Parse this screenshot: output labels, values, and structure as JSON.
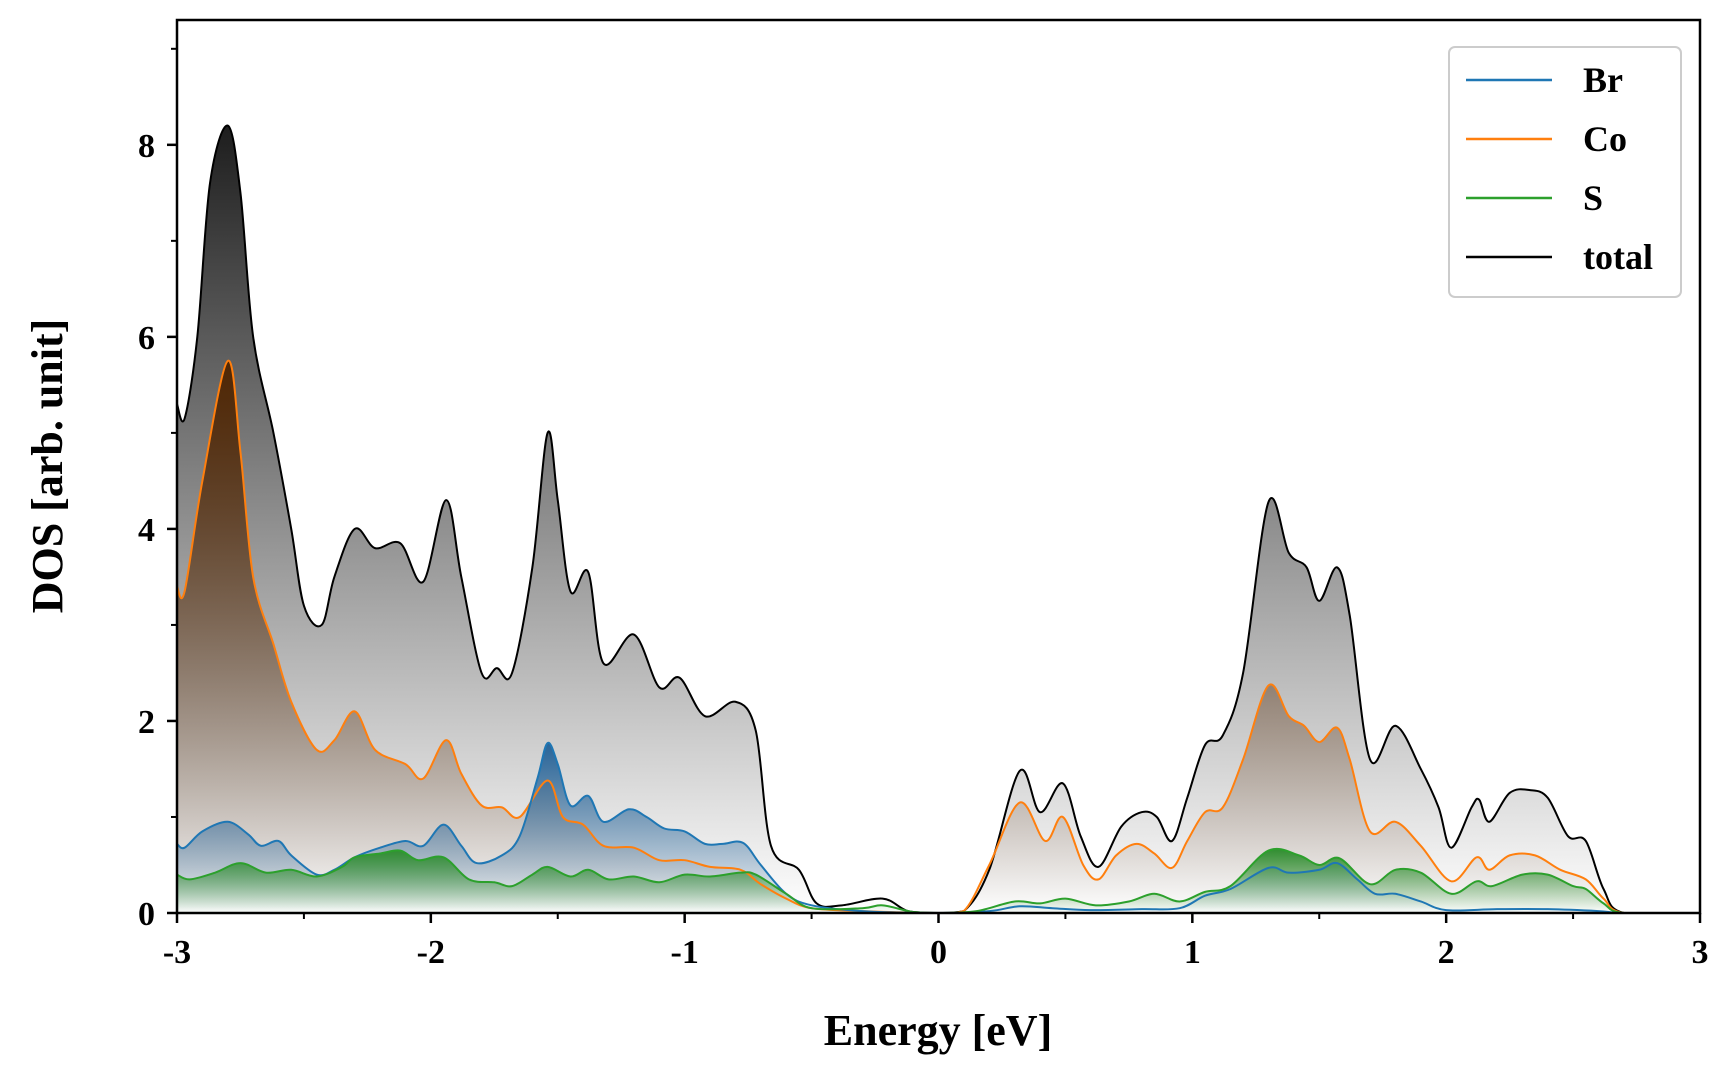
{
  "chart_data": {
    "type": "area",
    "title": "",
    "xlabel": "Energy [eV]",
    "ylabel": "DOS [arb. unit]",
    "xlim": [
      -3,
      3
    ],
    "ylim": [
      0,
      9.3
    ],
    "xticks": [
      -3,
      -2,
      -1,
      0,
      1,
      2,
      3
    ],
    "xtick_labels": [
      "-3",
      "-2",
      "-1",
      "0",
      "1",
      "2",
      "3"
    ],
    "yticks": [
      0,
      2,
      4,
      6,
      8
    ],
    "ytick_labels": [
      "0",
      "2",
      "4",
      "6",
      "8"
    ],
    "grid": false,
    "legend_position": "top-right",
    "series": [
      {
        "name": "total",
        "color": "#000000",
        "fill": "#111111",
        "points": [
          [
            -3,
            5.3
          ],
          [
            -2.97,
            5.15
          ],
          [
            -2.92,
            6.0
          ],
          [
            -2.87,
            7.6
          ],
          [
            -2.8,
            8.2
          ],
          [
            -2.75,
            7.5
          ],
          [
            -2.7,
            6.0
          ],
          [
            -2.62,
            5.0
          ],
          [
            -2.55,
            4.0
          ],
          [
            -2.5,
            3.2
          ],
          [
            -2.43,
            3.0
          ],
          [
            -2.38,
            3.5
          ],
          [
            -2.3,
            4.0
          ],
          [
            -2.22,
            3.8
          ],
          [
            -2.12,
            3.85
          ],
          [
            -2.03,
            3.45
          ],
          [
            -1.94,
            4.3
          ],
          [
            -1.88,
            3.5
          ],
          [
            -1.8,
            2.5
          ],
          [
            -1.74,
            2.55
          ],
          [
            -1.68,
            2.5
          ],
          [
            -1.6,
            3.6
          ],
          [
            -1.54,
            5.0
          ],
          [
            -1.5,
            4.3
          ],
          [
            -1.45,
            3.35
          ],
          [
            -1.38,
            3.55
          ],
          [
            -1.32,
            2.6
          ],
          [
            -1.2,
            2.9
          ],
          [
            -1.1,
            2.35
          ],
          [
            -1.02,
            2.45
          ],
          [
            -0.92,
            2.05
          ],
          [
            -0.8,
            2.2
          ],
          [
            -0.72,
            1.9
          ],
          [
            -0.66,
            0.7
          ],
          [
            -0.55,
            0.45
          ],
          [
            -0.48,
            0.1
          ],
          [
            -0.38,
            0.08
          ],
          [
            -0.22,
            0.15
          ],
          [
            -0.12,
            0.02
          ],
          [
            0,
            0
          ],
          [
            0.1,
            0.02
          ],
          [
            0.2,
            0.45
          ],
          [
            0.32,
            1.48
          ],
          [
            0.4,
            1.05
          ],
          [
            0.49,
            1.35
          ],
          [
            0.56,
            0.8
          ],
          [
            0.63,
            0.48
          ],
          [
            0.72,
            0.9
          ],
          [
            0.8,
            1.05
          ],
          [
            0.86,
            1.0
          ],
          [
            0.92,
            0.75
          ],
          [
            0.98,
            1.2
          ],
          [
            1.05,
            1.75
          ],
          [
            1.12,
            1.85
          ],
          [
            1.2,
            2.5
          ],
          [
            1.3,
            4.28
          ],
          [
            1.38,
            3.75
          ],
          [
            1.45,
            3.6
          ],
          [
            1.5,
            3.25
          ],
          [
            1.57,
            3.6
          ],
          [
            1.62,
            3.1
          ],
          [
            1.7,
            1.6
          ],
          [
            1.8,
            1.95
          ],
          [
            1.9,
            1.5
          ],
          [
            1.97,
            1.1
          ],
          [
            2.02,
            0.68
          ],
          [
            2.1,
            1.1
          ],
          [
            2.13,
            1.18
          ],
          [
            2.17,
            0.95
          ],
          [
            2.25,
            1.25
          ],
          [
            2.33,
            1.28
          ],
          [
            2.4,
            1.2
          ],
          [
            2.48,
            0.8
          ],
          [
            2.55,
            0.75
          ],
          [
            2.62,
            0.25
          ],
          [
            2.7,
            0
          ],
          [
            3,
            0
          ]
        ]
      },
      {
        "name": "Co",
        "color": "#ff7f0e",
        "fill": "#4f2400",
        "points": [
          [
            -3,
            3.4
          ],
          [
            -2.97,
            3.35
          ],
          [
            -2.9,
            4.5
          ],
          [
            -2.8,
            5.75
          ],
          [
            -2.75,
            4.8
          ],
          [
            -2.7,
            3.5
          ],
          [
            -2.62,
            2.8
          ],
          [
            -2.55,
            2.2
          ],
          [
            -2.45,
            1.7
          ],
          [
            -2.38,
            1.8
          ],
          [
            -2.3,
            2.1
          ],
          [
            -2.22,
            1.7
          ],
          [
            -2.1,
            1.55
          ],
          [
            -2.03,
            1.4
          ],
          [
            -1.94,
            1.8
          ],
          [
            -1.88,
            1.45
          ],
          [
            -1.8,
            1.12
          ],
          [
            -1.72,
            1.1
          ],
          [
            -1.65,
            1.0
          ],
          [
            -1.54,
            1.38
          ],
          [
            -1.48,
            1.0
          ],
          [
            -1.4,
            0.92
          ],
          [
            -1.32,
            0.7
          ],
          [
            -1.2,
            0.68
          ],
          [
            -1.1,
            0.55
          ],
          [
            -1.0,
            0.55
          ],
          [
            -0.9,
            0.48
          ],
          [
            -0.78,
            0.45
          ],
          [
            -0.7,
            0.3
          ],
          [
            -0.6,
            0.15
          ],
          [
            -0.5,
            0.05
          ],
          [
            -0.3,
            0.02
          ],
          [
            0,
            0
          ],
          [
            0.1,
            0.02
          ],
          [
            0.2,
            0.5
          ],
          [
            0.32,
            1.15
          ],
          [
            0.42,
            0.75
          ],
          [
            0.49,
            1.0
          ],
          [
            0.57,
            0.5
          ],
          [
            0.63,
            0.35
          ],
          [
            0.7,
            0.6
          ],
          [
            0.78,
            0.72
          ],
          [
            0.85,
            0.62
          ],
          [
            0.92,
            0.47
          ],
          [
            0.98,
            0.75
          ],
          [
            1.05,
            1.05
          ],
          [
            1.12,
            1.1
          ],
          [
            1.2,
            1.6
          ],
          [
            1.3,
            2.37
          ],
          [
            1.38,
            2.05
          ],
          [
            1.44,
            1.95
          ],
          [
            1.5,
            1.78
          ],
          [
            1.57,
            1.93
          ],
          [
            1.62,
            1.6
          ],
          [
            1.7,
            0.85
          ],
          [
            1.8,
            0.95
          ],
          [
            1.9,
            0.7
          ],
          [
            2.02,
            0.33
          ],
          [
            2.12,
            0.58
          ],
          [
            2.17,
            0.45
          ],
          [
            2.25,
            0.6
          ],
          [
            2.35,
            0.6
          ],
          [
            2.45,
            0.45
          ],
          [
            2.55,
            0.35
          ],
          [
            2.62,
            0.15
          ],
          [
            2.7,
            0
          ],
          [
            3,
            0
          ]
        ]
      },
      {
        "name": "Br",
        "color": "#1f77b4",
        "fill": "#1f5f96",
        "points": [
          [
            -3,
            0.72
          ],
          [
            -2.97,
            0.68
          ],
          [
            -2.9,
            0.85
          ],
          [
            -2.8,
            0.95
          ],
          [
            -2.72,
            0.82
          ],
          [
            -2.67,
            0.7
          ],
          [
            -2.6,
            0.75
          ],
          [
            -2.55,
            0.6
          ],
          [
            -2.45,
            0.4
          ],
          [
            -2.38,
            0.45
          ],
          [
            -2.3,
            0.58
          ],
          [
            -2.2,
            0.68
          ],
          [
            -2.1,
            0.75
          ],
          [
            -2.03,
            0.7
          ],
          [
            -1.95,
            0.92
          ],
          [
            -1.88,
            0.7
          ],
          [
            -1.82,
            0.52
          ],
          [
            -1.72,
            0.6
          ],
          [
            -1.65,
            0.8
          ],
          [
            -1.58,
            1.4
          ],
          [
            -1.54,
            1.77
          ],
          [
            -1.5,
            1.55
          ],
          [
            -1.45,
            1.12
          ],
          [
            -1.38,
            1.22
          ],
          [
            -1.32,
            0.95
          ],
          [
            -1.22,
            1.08
          ],
          [
            -1.15,
            1.0
          ],
          [
            -1.08,
            0.88
          ],
          [
            -1.0,
            0.85
          ],
          [
            -0.92,
            0.72
          ],
          [
            -0.85,
            0.72
          ],
          [
            -0.77,
            0.73
          ],
          [
            -0.7,
            0.5
          ],
          [
            -0.6,
            0.2
          ],
          [
            -0.5,
            0.08
          ],
          [
            -0.3,
            0.02
          ],
          [
            0,
            0
          ],
          [
            0.2,
            0.02
          ],
          [
            0.32,
            0.07
          ],
          [
            0.45,
            0.05
          ],
          [
            0.6,
            0.03
          ],
          [
            0.8,
            0.04
          ],
          [
            0.95,
            0.05
          ],
          [
            1.05,
            0.18
          ],
          [
            1.15,
            0.25
          ],
          [
            1.3,
            0.47
          ],
          [
            1.38,
            0.42
          ],
          [
            1.5,
            0.45
          ],
          [
            1.57,
            0.52
          ],
          [
            1.65,
            0.35
          ],
          [
            1.72,
            0.2
          ],
          [
            1.8,
            0.2
          ],
          [
            1.9,
            0.12
          ],
          [
            2.0,
            0.03
          ],
          [
            2.2,
            0.04
          ],
          [
            2.4,
            0.04
          ],
          [
            2.6,
            0.02
          ],
          [
            2.7,
            0
          ],
          [
            3,
            0
          ]
        ]
      },
      {
        "name": "S",
        "color": "#2ca02c",
        "fill": "#2c8c2c",
        "points": [
          [
            -3,
            0.4
          ],
          [
            -2.95,
            0.35
          ],
          [
            -2.85,
            0.42
          ],
          [
            -2.75,
            0.52
          ],
          [
            -2.65,
            0.42
          ],
          [
            -2.55,
            0.45
          ],
          [
            -2.45,
            0.38
          ],
          [
            -2.35,
            0.48
          ],
          [
            -2.3,
            0.58
          ],
          [
            -2.2,
            0.62
          ],
          [
            -2.12,
            0.65
          ],
          [
            -2.05,
            0.55
          ],
          [
            -1.95,
            0.58
          ],
          [
            -1.85,
            0.35
          ],
          [
            -1.75,
            0.32
          ],
          [
            -1.68,
            0.28
          ],
          [
            -1.6,
            0.4
          ],
          [
            -1.54,
            0.48
          ],
          [
            -1.45,
            0.38
          ],
          [
            -1.38,
            0.45
          ],
          [
            -1.3,
            0.35
          ],
          [
            -1.2,
            0.38
          ],
          [
            -1.1,
            0.32
          ],
          [
            -1.0,
            0.4
          ],
          [
            -0.9,
            0.38
          ],
          [
            -0.78,
            0.42
          ],
          [
            -0.72,
            0.4
          ],
          [
            -0.6,
            0.2
          ],
          [
            -0.5,
            0.05
          ],
          [
            -0.3,
            0.05
          ],
          [
            -0.22,
            0.08
          ],
          [
            -0.1,
            0.01
          ],
          [
            0,
            0
          ],
          [
            0.15,
            0.02
          ],
          [
            0.3,
            0.12
          ],
          [
            0.4,
            0.1
          ],
          [
            0.5,
            0.15
          ],
          [
            0.62,
            0.08
          ],
          [
            0.75,
            0.12
          ],
          [
            0.85,
            0.2
          ],
          [
            0.95,
            0.12
          ],
          [
            1.05,
            0.22
          ],
          [
            1.15,
            0.28
          ],
          [
            1.3,
            0.65
          ],
          [
            1.42,
            0.6
          ],
          [
            1.5,
            0.5
          ],
          [
            1.58,
            0.57
          ],
          [
            1.7,
            0.3
          ],
          [
            1.8,
            0.45
          ],
          [
            1.9,
            0.42
          ],
          [
            2.02,
            0.2
          ],
          [
            2.12,
            0.33
          ],
          [
            2.18,
            0.28
          ],
          [
            2.3,
            0.4
          ],
          [
            2.4,
            0.4
          ],
          [
            2.5,
            0.28
          ],
          [
            2.55,
            0.25
          ],
          [
            2.62,
            0.1
          ],
          [
            2.7,
            0
          ],
          [
            3,
            0
          ]
        ]
      }
    ],
    "legend": [
      "Br",
      "Co",
      "S",
      "total"
    ]
  }
}
